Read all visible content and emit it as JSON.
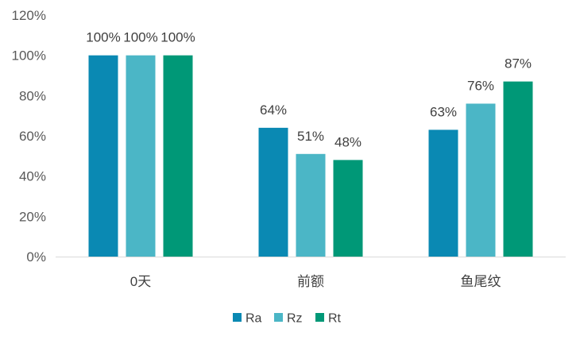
{
  "chart_data": {
    "type": "bar",
    "title": "",
    "xlabel": "",
    "ylabel": "",
    "categories": [
      "0天",
      "前额",
      "鱼尾纹"
    ],
    "series": [
      {
        "name": "Ra",
        "values": [
          100,
          64,
          63
        ],
        "color": "#0a89b3",
        "labels": [
          "100%",
          "64%",
          "63%"
        ]
      },
      {
        "name": "Rz",
        "values": [
          100,
          51,
          76
        ],
        "color": "#4bb6c6",
        "labels": [
          "100%",
          "51%",
          "76%"
        ]
      },
      {
        "name": "Rt",
        "values": [
          100,
          48,
          87
        ],
        "color": "#009877",
        "labels": [
          "100%",
          "48%",
          "87%"
        ]
      }
    ],
    "ylim": [
      0,
      120
    ],
    "yticks": [
      0,
      20,
      40,
      60,
      80,
      100,
      120
    ],
    "ytick_labels": [
      "0%",
      "20%",
      "40%",
      "60%",
      "80%",
      "100%",
      "120%"
    ],
    "grid": false,
    "legend_position": "bottom",
    "axis_color": "#d9d9d9",
    "label_color": "#404040"
  }
}
